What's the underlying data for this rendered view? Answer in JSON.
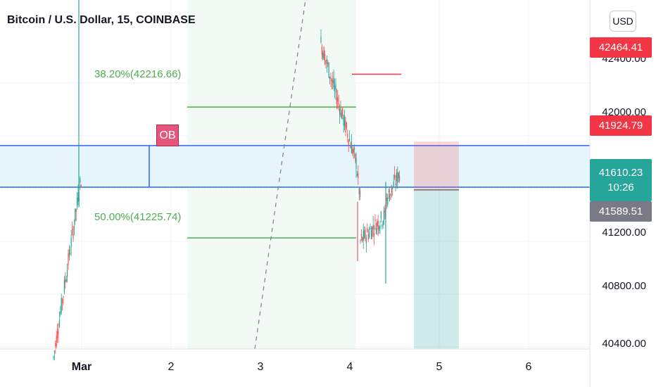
{
  "header": {
    "title": "Bitcoin / U.S. Dollar, 15, COINBASE",
    "currency": "USD"
  },
  "colors": {
    "up": "#26a69a",
    "down": "#ef5350",
    "zone_line": "#2962ff",
    "fib": "#4caf50",
    "price_badge": "#26a69a",
    "red_badge": "#f23645",
    "grey_badge": "#787b86"
  },
  "chart_data": {
    "type": "candlestick",
    "symbol": "Bitcoin / U.S. Dollar",
    "interval": "15",
    "exchange": "COINBASE",
    "x_ticks": [
      "Mar",
      "2",
      "3",
      "4",
      "5",
      "6"
    ],
    "y_ticks": [
      "42400.00",
      "42000.00",
      "41200.00",
      "40800.00",
      "40400.00"
    ],
    "ylim": [
      40340,
      42870
    ],
    "order_block": {
      "label": "OB",
      "top": 41924.79,
      "bottom": 41610.23
    },
    "fib_levels": [
      {
        "label": "38.20%(42216.66)",
        "price": 42216.66
      },
      {
        "label": "50.00%(41225.74)",
        "price": 41225.74
      }
    ],
    "price_labels": [
      {
        "id": "red_top",
        "text": "42464.41",
        "price": 42464.41
      },
      {
        "id": "red_zone",
        "text": "41924.79",
        "price": 41924.79
      },
      {
        "id": "current",
        "text": "41610.23",
        "price": 41610.23,
        "sub": "10:26"
      },
      {
        "id": "grey",
        "text": "41589.51",
        "price": 41589.51
      }
    ],
    "position": {
      "type": "short",
      "entry": 41589.51,
      "stop": 41955,
      "target": 40340
    }
  }
}
